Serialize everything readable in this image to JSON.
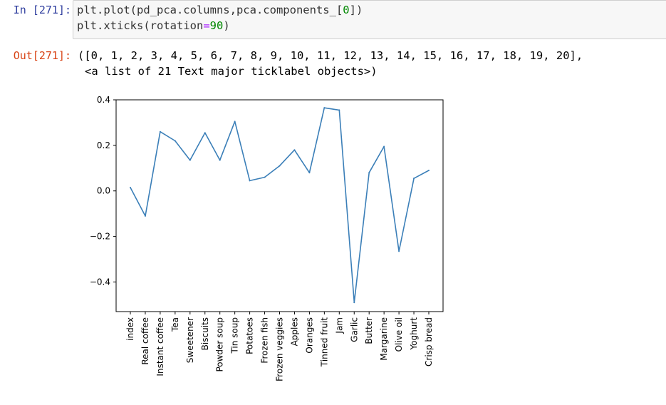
{
  "cell": {
    "in_prompt": "In [271]:",
    "code": {
      "line1_a": "plt.plot(pd_pca.columns,pca.components_[",
      "line1_num": "0",
      "line1_b": "])",
      "line2_a": "plt.xticks(rotation",
      "line2_op": "=",
      "line2_num": "90",
      "line2_b": ")"
    },
    "out_prompt": "Out[271]:",
    "output_line1": "([0, 1, 2, 3, 4, 5, 6, 7, 8, 9, 10, 11, 12, 13, 14, 15, 16, 17, 18, 19, 20],",
    "output_line2": "<a list of 21 Text major ticklabel objects>)"
  },
  "chart_data": {
    "type": "line",
    "categories": [
      "index",
      "Real coffee",
      "Instant coffee",
      "Tea",
      "Sweetener",
      "Biscuits",
      "Powder soup",
      "Tin soup",
      "Potatoes",
      "Frozen fish",
      "Frozen veggies",
      "Apples",
      "Oranges",
      "Tinned fruit",
      "Jam",
      "Garlic",
      "Butter",
      "Margarine",
      "Olive oil",
      "Yoghurt",
      "Crisp bread"
    ],
    "values": [
      0.015,
      -0.11,
      0.26,
      0.22,
      0.135,
      0.255,
      0.135,
      0.305,
      0.045,
      0.06,
      0.11,
      0.18,
      0.08,
      0.365,
      0.355,
      -0.49,
      0.08,
      0.195,
      -0.265,
      0.055,
      0.09
    ],
    "yticks": [
      "0.4",
      "0.2",
      "0.0",
      "−0.2",
      "−0.4"
    ],
    "ytick_values": [
      0.4,
      0.2,
      0.0,
      -0.2,
      -0.4
    ],
    "ylim": [
      -0.53,
      0.4
    ],
    "xtick_rotation": 90,
    "line_color": "#3b7fb8",
    "grid": false,
    "title": "",
    "xlabel": "",
    "ylabel": ""
  }
}
